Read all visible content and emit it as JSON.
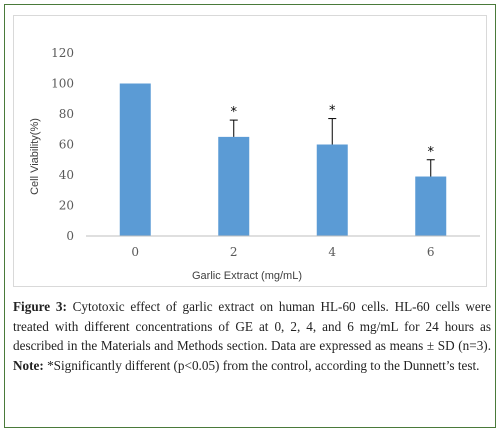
{
  "chart_data": {
    "type": "bar",
    "categories": [
      "0",
      "2",
      "4",
      "6"
    ],
    "values": [
      100,
      65,
      60,
      39
    ],
    "error": [
      0,
      11,
      17,
      11
    ],
    "significance": [
      "",
      "*",
      "*",
      "*"
    ],
    "xlabel": "Garlic Extract (mg/mL)",
    "ylabel": "Cell Viability(%)",
    "ylim": [
      0,
      120
    ],
    "yticks": [
      0,
      20,
      40,
      60,
      80,
      100,
      120
    ],
    "grid": false,
    "bar_color": "#5b9bd5"
  },
  "caption": {
    "figure_label": "Figure 3:",
    "text": " Cytotoxic effect of garlic extract on human HL-60 cells. HL-60 cells were treated with different concentrations of GE at 0, 2, 4, and 6 mg/mL for 24 hours as described in the Materials and Methods section. Data are expressed as means ± SD (n=3). ",
    "note_label": "Note:",
    "note_text": " *Significantly different (p<0.05) from the control, according to the Dunnett’s test."
  }
}
